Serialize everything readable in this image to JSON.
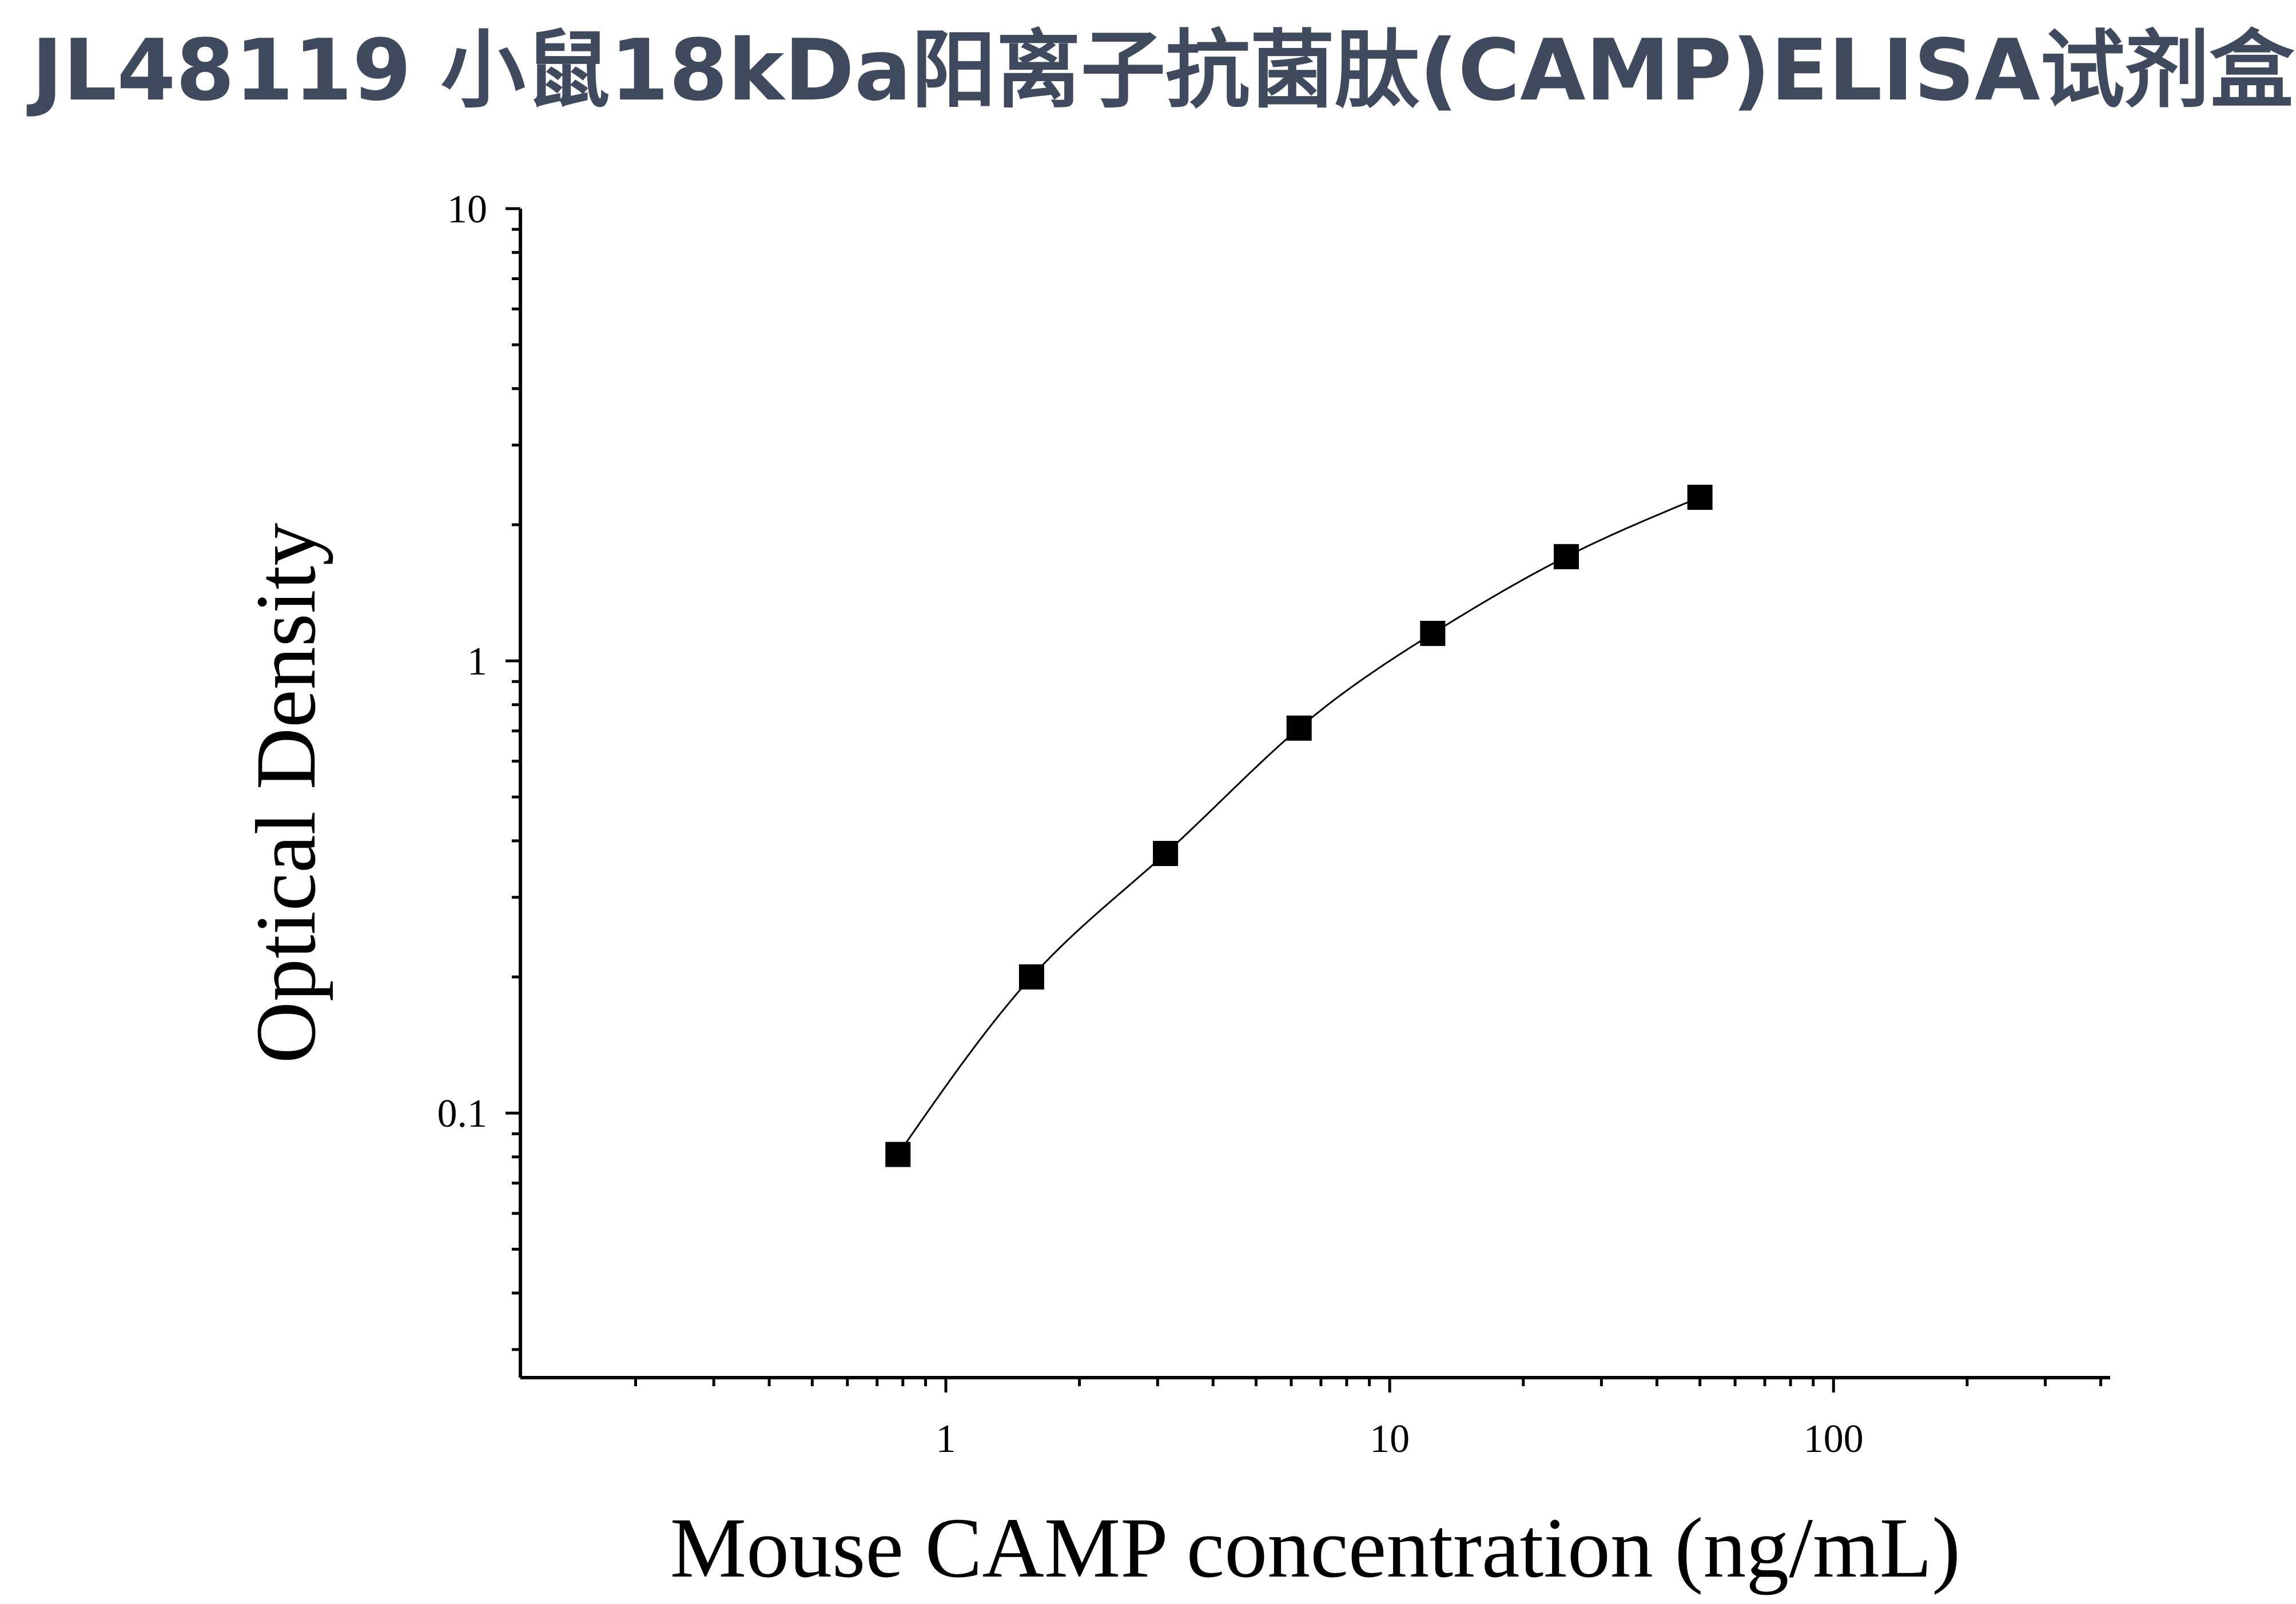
{
  "title": "JL48119 小鼠18kDa阳离子抗菌肽(CAMP)ELISA试剂盒",
  "chart_data": {
    "type": "scatter",
    "title": "JL48119 小鼠18kDa阳离子抗菌肽(CAMP)ELISA试剂盒",
    "xlabel": "Mouse CAMP concentration (ng/mL)",
    "ylabel": "Optical Density",
    "xscale": "log",
    "yscale": "log",
    "xlim": [
      0.11,
      420
    ],
    "ylim": [
      0.026,
      10
    ],
    "x_ticks": [
      {
        "value": 1,
        "label": "1"
      },
      {
        "value": 10,
        "label": "10"
      },
      {
        "value": 100,
        "label": "100"
      }
    ],
    "y_ticks": [
      {
        "value": 0.1,
        "label": "0.1"
      },
      {
        "value": 1,
        "label": "1"
      },
      {
        "value": 10,
        "label": "10"
      }
    ],
    "grid": false,
    "series": [
      {
        "marker": "square",
        "color": "#000000",
        "x": [
          0.78,
          1.56,
          3.125,
          6.25,
          12.5,
          25,
          50
        ],
        "y": [
          0.081,
          0.2,
          0.375,
          0.71,
          1.15,
          1.7,
          2.3
        ],
        "fit_curve": true
      }
    ]
  }
}
